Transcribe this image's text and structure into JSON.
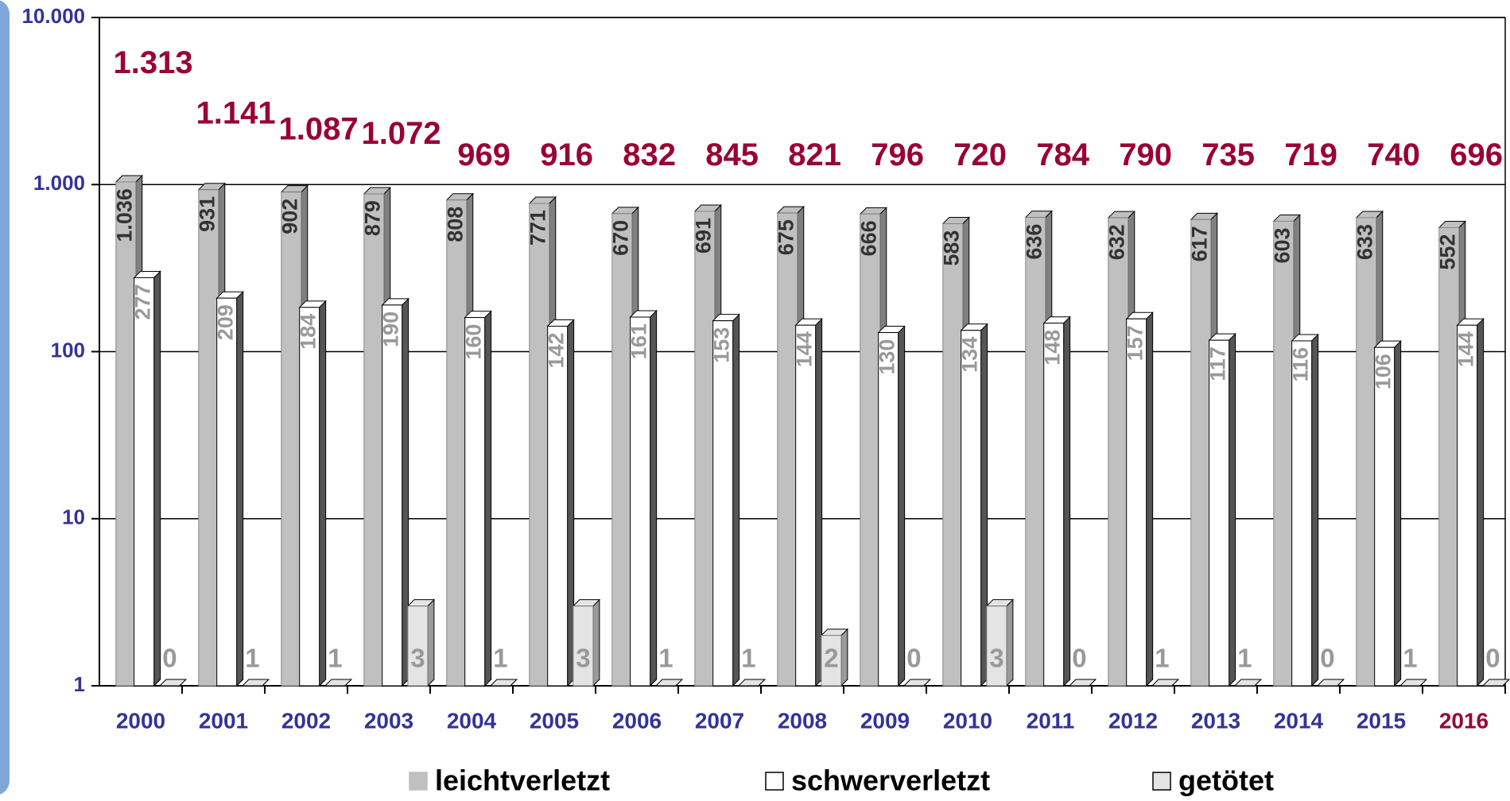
{
  "chart_data": {
    "type": "bar",
    "log_scale": true,
    "grid": true,
    "legend": "bottom",
    "categories": [
      "2000",
      "2001",
      "2002",
      "2003",
      "2004",
      "2005",
      "2006",
      "2007",
      "2008",
      "2009",
      "2010",
      "2011",
      "2012",
      "2013",
      "2014",
      "2015",
      "2016"
    ],
    "category_label_colors": [
      "#333399",
      "#333399",
      "#333399",
      "#333399",
      "#333399",
      "#333399",
      "#333399",
      "#333399",
      "#333399",
      "#333399",
      "#333399",
      "#333399",
      "#333399",
      "#333399",
      "#333399",
      "#333399",
      "#990033"
    ],
    "series": [
      {
        "name": "leichtverletzt",
        "color": "#c0c0c0",
        "values": [
          1036,
          931,
          902,
          879,
          808,
          771,
          670,
          691,
          675,
          666,
          583,
          636,
          632,
          617,
          603,
          633,
          552
        ],
        "value_labels": [
          "1.036",
          "931",
          "902",
          "879",
          "808",
          "771",
          "670",
          "691",
          "675",
          "666",
          "583",
          "636",
          "632",
          "617",
          "603",
          "633",
          "552"
        ]
      },
      {
        "name": "schwerverletzt",
        "color": "#ffffff",
        "values": [
          277,
          209,
          184,
          190,
          160,
          142,
          161,
          153,
          144,
          130,
          134,
          148,
          157,
          117,
          116,
          106,
          144
        ]
      },
      {
        "name": "getötet",
        "color": "#e4e4e4",
        "values": [
          0,
          1,
          1,
          3,
          1,
          3,
          1,
          1,
          2,
          0,
          3,
          0,
          1,
          1,
          0,
          1,
          0
        ]
      }
    ],
    "totals": {
      "color": "#990033",
      "values": [
        1313,
        1141,
        1087,
        1072,
        969,
        916,
        832,
        845,
        821,
        796,
        720,
        784,
        790,
        735,
        719,
        740,
        696
      ],
      "value_labels": [
        "1.313",
        "1.141",
        "1.087",
        "1.072",
        "969",
        "916",
        "832",
        "845",
        "821",
        "796",
        "720",
        "784",
        "790",
        "735",
        "719",
        "740",
        "696"
      ]
    },
    "ylim": [
      1,
      10000
    ],
    "yticks": [
      1,
      10,
      100,
      {
        "value": 1000,
        "label": "1.000"
      },
      {
        "value": 10000,
        "label": "10.000"
      }
    ]
  }
}
